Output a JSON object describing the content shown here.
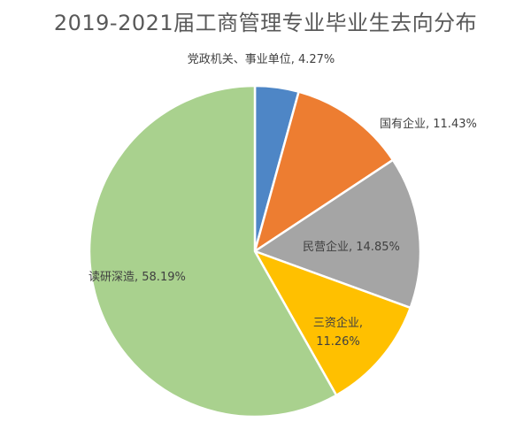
{
  "chart_data": {
    "type": "pie",
    "title": "2019-2021届工商管理专业毕业生去向分布",
    "slices": [
      {
        "label": "党政机关、事业单位",
        "value": 4.27,
        "value_text": "4.27%",
        "color": "#4e86c6"
      },
      {
        "label": "国有企业",
        "value": 11.43,
        "value_text": "11.43%",
        "color": "#ed7d31"
      },
      {
        "label": "民营企业",
        "value": 14.85,
        "value_text": "14.85%",
        "color": "#a5a5a5"
      },
      {
        "label": "三资企业",
        "value": 11.26,
        "value_text": "11.26%",
        "color": "#ffc000"
      },
      {
        "label": "读研深造",
        "value": 58.19,
        "value_text": "58.19%",
        "color": "#a9d18e"
      }
    ],
    "legend": "none",
    "data_labels": "label, value"
  }
}
